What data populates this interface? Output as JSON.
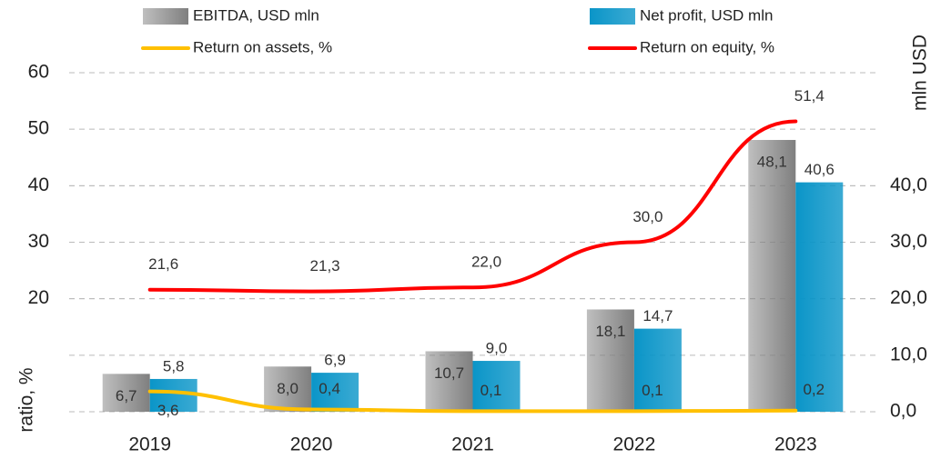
{
  "chart_data": {
    "type": "bar-line",
    "categories": [
      "2019",
      "2020",
      "2021",
      "2022",
      "2023"
    ],
    "ylabel": "ratio, %",
    "y2label": "mln USD",
    "ylim": [
      0,
      60
    ],
    "yticks": [
      20,
      30,
      40,
      50,
      60
    ],
    "y2lim": [
      0,
      60
    ],
    "y2ticks": [
      {
        "value": 0,
        "label": "0,0"
      },
      {
        "value": 10,
        "label": "10,0"
      },
      {
        "value": 20,
        "label": "20,0"
      },
      {
        "value": 30,
        "label": "30,0"
      },
      {
        "value": 40,
        "label": "40,0"
      }
    ],
    "grid": true,
    "legend": "top",
    "series": [
      {
        "name": "EBITDA, USD mln",
        "type": "bar",
        "axis": "y2",
        "color": "#7f7f7f",
        "values": [
          6.7,
          8.0,
          10.7,
          18.1,
          48.1
        ],
        "value_labels": [
          "6,7",
          "8,0",
          "10,7",
          "18,1",
          "48,1"
        ]
      },
      {
        "name": "Net profit, USD mln",
        "type": "bar",
        "axis": "y2",
        "color": "#0a95c8",
        "values": [
          5.8,
          6.9,
          9.0,
          14.7,
          40.6
        ],
        "value_labels": [
          "5,8",
          "6,9",
          "9,0",
          "14,7",
          "40,6"
        ]
      },
      {
        "name": "Return on assets, %",
        "type": "line",
        "color": "#ffc000",
        "values": [
          3.6,
          0.4,
          0.1,
          0.1,
          0.2
        ],
        "value_labels": [
          "3,6",
          "0,4",
          "0,1",
          "0,1",
          "0,2"
        ]
      },
      {
        "name": "Return on equity, %",
        "type": "line",
        "color": "#ff0000",
        "values": [
          21.6,
          21.3,
          22.0,
          30.0,
          51.4
        ],
        "value_labels": [
          "21,6",
          "21,3",
          "22,0",
          "30,0",
          "51,4"
        ]
      }
    ]
  }
}
